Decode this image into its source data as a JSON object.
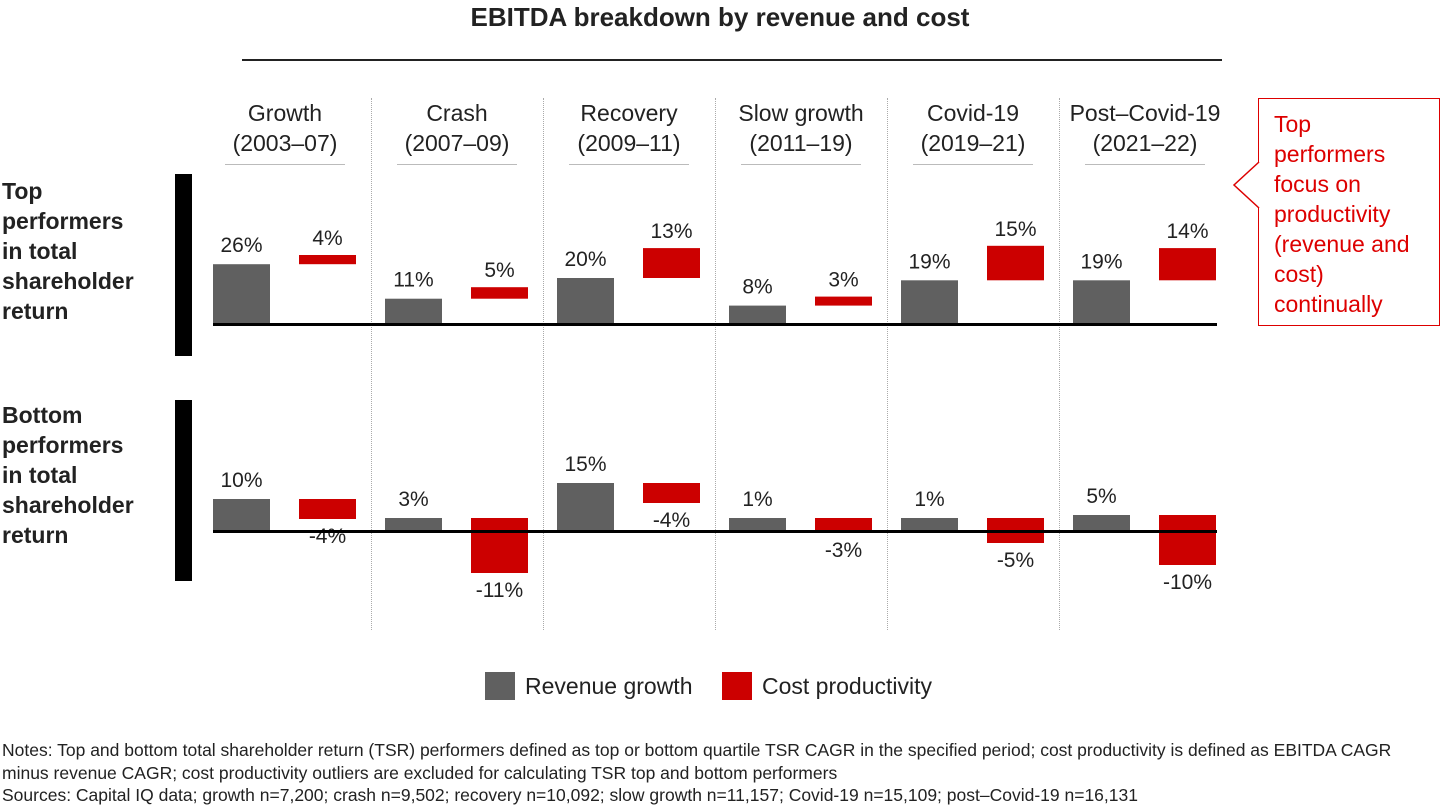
{
  "chart_data": {
    "type": "bar",
    "title": "EBITDA breakdown by revenue and cost",
    "categories": [
      "Growth (2003–07)",
      "Crash (2007–09)",
      "Recovery (2009–11)",
      "Slow growth (2011–19)",
      "Covid-19 (2019–21)",
      "Post–Covid-19 (2021–22)"
    ],
    "category_lines": [
      [
        "Growth",
        "(2003–07)"
      ],
      [
        "Crash",
        "(2007–09)"
      ],
      [
        "Recovery",
        "(2009–11)"
      ],
      [
        "Slow growth",
        "(2011–19)"
      ],
      [
        "Covid-19",
        "(2019–21)"
      ],
      [
        "Post–Covid-19",
        "(2021–22)"
      ]
    ],
    "panels": [
      {
        "label": [
          "Top",
          "performers",
          "in total",
          "shareholder",
          "return"
        ],
        "series": [
          {
            "name": "Revenue growth",
            "values": [
              26,
              11,
              20,
              8,
              19,
              19
            ]
          },
          {
            "name": "Cost productivity",
            "values": [
              4,
              5,
              13,
              3,
              15,
              14
            ]
          }
        ]
      },
      {
        "label": [
          "Bottom",
          "performers",
          "in total",
          "shareholder",
          "return"
        ],
        "series": [
          {
            "name": "Revenue growth",
            "values": [
              10,
              3,
              15,
              1,
              1,
              5
            ]
          },
          {
            "name": "Cost productivity",
            "values": [
              -4,
              -11,
              -4,
              -3,
              -5,
              -10
            ]
          }
        ]
      }
    ],
    "legend": [
      "Revenue growth",
      "Cost productivity"
    ],
    "legend_position": "bottom",
    "colors": {
      "revenue": "#606060",
      "cost": "#cc0000"
    },
    "grid": false
  },
  "callout": [
    "Top",
    "performers",
    "focus on",
    "productivity",
    "(revenue and",
    "cost)",
    "continually"
  ],
  "notes": "Notes: Top and bottom total shareholder return (TSR) performers defined as top or bottom quartile TSR CAGR in the specified period; cost productivity is defined as EBITDA CAGR minus revenue CAGR; cost productivity outliers are excluded for calculating TSR top and bottom performers",
  "sources": "Sources: Capital IQ data; growth n=7,200; crash n=9,502; recovery n=10,092; slow growth n=11,157; Covid-19 n=15,109; post–Covid-19 n=16,131"
}
